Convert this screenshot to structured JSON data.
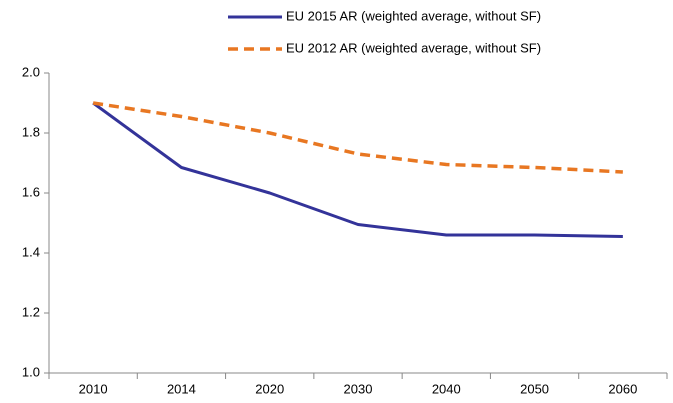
{
  "chart_data": {
    "type": "line",
    "categories": [
      "2010",
      "2014",
      "2020",
      "2030",
      "2040",
      "2050",
      "2060"
    ],
    "series": [
      {
        "name": "EU 2015 AR (weighted average, without SF)",
        "color": "#333399",
        "style": "solid",
        "values": [
          1.9,
          1.685,
          1.6,
          1.495,
          1.46,
          1.46,
          1.455
        ]
      },
      {
        "name": "EU 2012 AR (weighted average, without SF)",
        "color": "#e87722",
        "style": "dashed",
        "values": [
          1.9,
          1.855,
          1.8,
          1.73,
          1.695,
          1.685,
          1.67
        ]
      }
    ],
    "ylim": [
      1.0,
      2.0
    ],
    "yticks": [
      {
        "value": 1.0,
        "label": "1.0"
      },
      1.2,
      1.4,
      1.6,
      1.8,
      {
        "value": 2.0,
        "label": "2.0"
      }
    ],
    "grid": false
  }
}
